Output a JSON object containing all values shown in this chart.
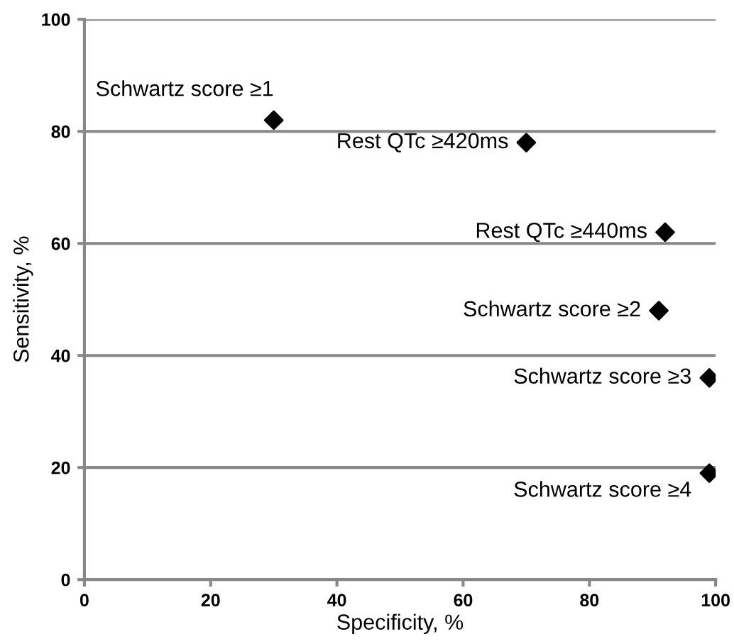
{
  "chart_data": {
    "type": "scatter",
    "xlabel": "Specificity, %",
    "ylabel": "Sensitivity, %",
    "x": [
      30,
      70,
      92,
      91,
      99,
      99
    ],
    "values": [
      82,
      78,
      62,
      48,
      36,
      19
    ],
    "color": "#000000",
    "marker": "diamond",
    "annotations": [
      {
        "text": "Schwartz score ≥1",
        "x": 30,
        "y": 82
      },
      {
        "text": "Rest QTc ≥420ms",
        "x": 70,
        "y": 78
      },
      {
        "text": "Rest QTc ≥440ms",
        "x": 92,
        "y": 62
      },
      {
        "text": "Schwartz score ≥2",
        "x": 91,
        "y": 48
      },
      {
        "text": "Schwartz score ≥3",
        "x": 99,
        "y": 36
      },
      {
        "text": "Schwartz score ≥4",
        "x": 99,
        "y": 19
      }
    ],
    "xlim": [
      0,
      100
    ],
    "ylim": [
      0,
      100
    ],
    "xticks": [
      0,
      20,
      40,
      60,
      80,
      100
    ],
    "yticks": [
      0,
      20,
      40,
      60,
      80,
      100
    ],
    "grid": "y"
  }
}
